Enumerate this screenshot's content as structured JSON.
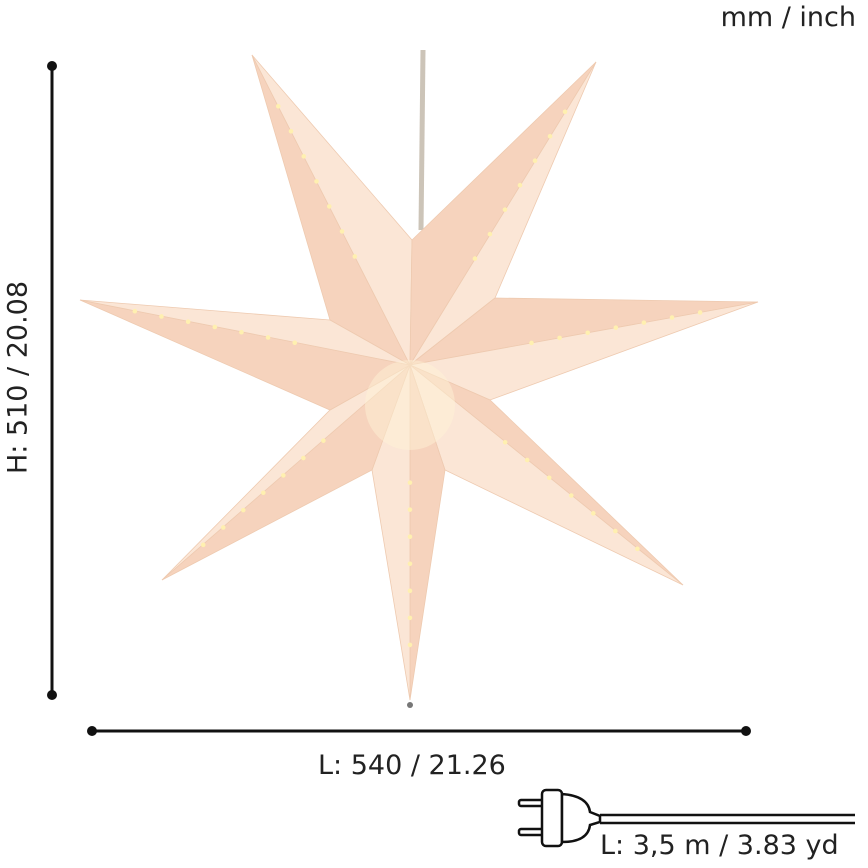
{
  "units_label": "mm / inch",
  "dimensions": {
    "height_label": "H: 510 / 20.08",
    "width_label": "L: 540 / 21.26",
    "cord_label": "L: 3,5 m / 3.83 yd"
  },
  "product": {
    "name_icon": "seven-point-paper-star-lamp",
    "colors": {
      "paper": "#f6d3bd",
      "paper_light": "#fbe6d6",
      "glow": "#fff3d8"
    }
  },
  "icons": {
    "plug": "plug-icon"
  }
}
